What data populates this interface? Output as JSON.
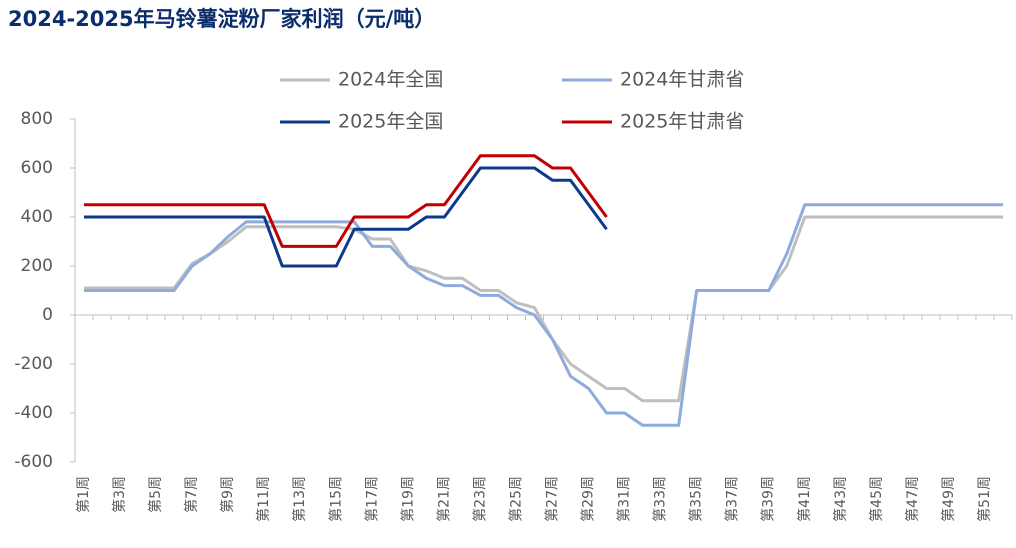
{
  "chart_data": {
    "type": "line",
    "title": "2024-2025年马铃薯淀粉厂家利润（元/吨）",
    "categories": [
      "第1周",
      null,
      "第3周",
      null,
      "第5周",
      null,
      "第7周",
      null,
      "第9周",
      null,
      "第11周",
      null,
      "第13周",
      null,
      "第15周",
      null,
      "第17周",
      null,
      "第19周",
      null,
      "第21周",
      null,
      "第23周",
      null,
      "第25周",
      null,
      "第27周",
      null,
      "第29周",
      null,
      "第31周",
      null,
      "第33周",
      null,
      "第35周",
      null,
      "第37周",
      null,
      "第39周",
      null,
      "第41周",
      null,
      "第43周",
      null,
      "第45周",
      null,
      "第47周",
      null,
      "第49周",
      null,
      "第51周",
      null
    ],
    "series": [
      {
        "name": "2024年全国",
        "color": "#bfbfbf",
        "values": [
          110,
          110,
          110,
          110,
          110,
          110,
          210,
          250,
          300,
          360,
          360,
          360,
          360,
          360,
          360,
          350,
          310,
          310,
          200,
          180,
          150,
          150,
          100,
          100,
          50,
          30,
          -100,
          -200,
          -250,
          -300,
          -300,
          -350,
          -350,
          -350,
          100,
          100,
          100,
          100,
          100,
          200,
          400,
          400,
          400,
          400,
          400,
          400,
          400,
          400,
          400,
          400,
          400,
          400
        ]
      },
      {
        "name": "2024年甘肃省",
        "color": "#8faadc",
        "values": [
          100,
          100,
          100,
          100,
          100,
          100,
          200,
          250,
          320,
          380,
          380,
          380,
          380,
          380,
          380,
          380,
          280,
          280,
          200,
          150,
          120,
          120,
          80,
          80,
          30,
          0,
          -100,
          -250,
          -300,
          -400,
          -400,
          -450,
          -450,
          -450,
          100,
          100,
          100,
          100,
          100,
          250,
          450,
          450,
          450,
          450,
          450,
          450,
          450,
          450,
          450,
          450,
          450,
          450
        ]
      },
      {
        "name": "2025年全国",
        "color": "#0c3a8a",
        "values": [
          400,
          400,
          400,
          400,
          400,
          400,
          400,
          400,
          400,
          400,
          400,
          200,
          200,
          200,
          200,
          350,
          350,
          350,
          350,
          400,
          400,
          500,
          600,
          600,
          600,
          600,
          550,
          550,
          450,
          350,
          null,
          null,
          null,
          null,
          null,
          null,
          null,
          null,
          null,
          null,
          null,
          null,
          null,
          null,
          null,
          null,
          null,
          null,
          null,
          null,
          null,
          null
        ]
      },
      {
        "name": "2025年甘肃省",
        "color": "#c00000",
        "values": [
          450,
          450,
          450,
          450,
          450,
          450,
          450,
          450,
          450,
          450,
          450,
          280,
          280,
          280,
          280,
          400,
          400,
          400,
          400,
          450,
          450,
          550,
          650,
          650,
          650,
          650,
          600,
          600,
          500,
          400,
          null,
          null,
          null,
          null,
          null,
          null,
          null,
          null,
          null,
          null,
          null,
          null,
          null,
          null,
          null,
          null,
          null,
          null,
          null,
          null,
          null,
          null
        ]
      }
    ],
    "ylim": [
      -600,
      800
    ],
    "yticks": [
      -600,
      -400,
      -200,
      0,
      200,
      400,
      600,
      800
    ],
    "legend": "top"
  }
}
